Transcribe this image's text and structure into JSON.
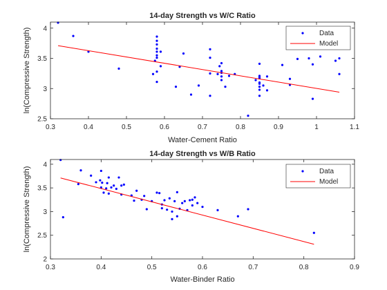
{
  "chart_data": [
    {
      "type": "scatter",
      "title": "14-day Strength vs W/C Ratio",
      "xlabel": "Water-Cement Ratio",
      "ylabel": "ln(Compressive Strength)",
      "xlim": [
        0.3,
        1.1
      ],
      "ylim": [
        2.5,
        4.1
      ],
      "xticks": [
        "0.3",
        "0.4",
        "0.5",
        "0.6",
        "0.7",
        "0.8",
        "0.9",
        "1",
        "1.1"
      ],
      "yticks": [
        "2.5",
        "3",
        "3.5",
        "4"
      ],
      "grid": false,
      "legend_position": "top-right",
      "series": [
        {
          "name": "Data",
          "kind": "points",
          "color": "#0000ff",
          "points": [
            [
              0.32,
              4.09
            ],
            [
              0.36,
              3.87
            ],
            [
              0.4,
              3.61
            ],
            [
              0.48,
              3.33
            ],
            [
              0.57,
              3.24
            ],
            [
              0.575,
              3.46
            ],
            [
              0.58,
              3.86
            ],
            [
              0.58,
              3.79
            ],
            [
              0.58,
              3.73
            ],
            [
              0.58,
              3.66
            ],
            [
              0.58,
              3.61
            ],
            [
              0.58,
              3.55
            ],
            [
              0.58,
              3.51
            ],
            [
              0.58,
              3.28
            ],
            [
              0.58,
              3.11
            ],
            [
              0.59,
              3.61
            ],
            [
              0.59,
              3.37
            ],
            [
              0.63,
              3.03
            ],
            [
              0.64,
              3.36
            ],
            [
              0.65,
              3.58
            ],
            [
              0.67,
              2.9
            ],
            [
              0.69,
              3.05
            ],
            [
              0.72,
              3.65
            ],
            [
              0.72,
              3.51
            ],
            [
              0.72,
              3.25
            ],
            [
              0.72,
              2.88
            ],
            [
              0.74,
              3.24
            ],
            [
              0.745,
              3.37
            ],
            [
              0.75,
              3.42
            ],
            [
              0.75,
              3.29
            ],
            [
              0.75,
              3.26
            ],
            [
              0.75,
              3.2
            ],
            [
              0.75,
              3.14
            ],
            [
              0.76,
              3.03
            ],
            [
              0.77,
              3.21
            ],
            [
              0.785,
              3.24
            ],
            [
              0.82,
              2.55
            ],
            [
              0.84,
              3.14
            ],
            [
              0.85,
              3.41
            ],
            [
              0.85,
              3.21
            ],
            [
              0.85,
              3.19
            ],
            [
              0.85,
              3.17
            ],
            [
              0.85,
              3.1
            ],
            [
              0.85,
              3.08
            ],
            [
              0.85,
              3.03
            ],
            [
              0.85,
              2.98
            ],
            [
              0.85,
              2.88
            ],
            [
              0.86,
              3.05
            ],
            [
              0.87,
              3.2
            ],
            [
              0.87,
              2.97
            ],
            [
              0.91,
              3.39
            ],
            [
              0.93,
              3.06
            ],
            [
              0.93,
              3.16
            ],
            [
              0.95,
              3.49
            ],
            [
              0.98,
              3.5
            ],
            [
              0.99,
              2.83
            ],
            [
              0.99,
              3.4
            ],
            [
              1.01,
              3.53
            ],
            [
              1.05,
              3.46
            ],
            [
              1.06,
              3.5
            ],
            [
              1.06,
              3.24
            ]
          ]
        },
        {
          "name": "Model",
          "kind": "line",
          "color": "#ff0000",
          "points": [
            [
              0.32,
              3.71
            ],
            [
              1.06,
              2.94
            ]
          ]
        }
      ]
    },
    {
      "type": "scatter",
      "title": "14-day Strength vs W/B Ratio",
      "xlabel": "Water-Binder Ratio",
      "ylabel": "ln(Compressive Strength)",
      "xlim": [
        0.3,
        0.9
      ],
      "ylim": [
        2.0,
        4.1
      ],
      "xticks": [
        "0.3",
        "0.4",
        "0.5",
        "0.6",
        "0.7",
        "0.8",
        "0.9"
      ],
      "yticks": [
        "2",
        "2.5",
        "3",
        "3.5",
        "4"
      ],
      "grid": false,
      "legend_position": "top-right",
      "series": [
        {
          "name": "Data",
          "kind": "points",
          "color": "#0000ff",
          "points": [
            [
              0.32,
              4.09
            ],
            [
              0.325,
              2.88
            ],
            [
              0.355,
              3.58
            ],
            [
              0.36,
              3.87
            ],
            [
              0.38,
              3.76
            ],
            [
              0.39,
              3.62
            ],
            [
              0.398,
              3.66
            ],
            [
              0.4,
              3.86
            ],
            [
              0.4,
              3.51
            ],
            [
              0.402,
              3.61
            ],
            [
              0.405,
              3.4
            ],
            [
              0.41,
              3.49
            ],
            [
              0.412,
              3.6
            ],
            [
              0.415,
              3.72
            ],
            [
              0.415,
              3.38
            ],
            [
              0.42,
              3.51
            ],
            [
              0.425,
              3.55
            ],
            [
              0.43,
              3.48
            ],
            [
              0.435,
              3.72
            ],
            [
              0.44,
              3.55
            ],
            [
              0.44,
              3.36
            ],
            [
              0.445,
              3.57
            ],
            [
              0.46,
              3.34
            ],
            [
              0.465,
              3.23
            ],
            [
              0.47,
              3.44
            ],
            [
              0.48,
              3.25
            ],
            [
              0.485,
              3.33
            ],
            [
              0.49,
              3.05
            ],
            [
              0.5,
              3.22
            ],
            [
              0.51,
              3.4
            ],
            [
              0.515,
              3.39
            ],
            [
              0.52,
              3.15
            ],
            [
              0.52,
              3.07
            ],
            [
              0.525,
              3.24
            ],
            [
              0.53,
              3.04
            ],
            [
              0.535,
              3.28
            ],
            [
              0.54,
              3.0
            ],
            [
              0.54,
              2.84
            ],
            [
              0.545,
              3.22
            ],
            [
              0.55,
              3.41
            ],
            [
              0.55,
              2.9
            ],
            [
              0.555,
              3.06
            ],
            [
              0.56,
              3.18
            ],
            [
              0.565,
              3.22
            ],
            [
              0.57,
              3.03
            ],
            [
              0.575,
              3.24
            ],
            [
              0.58,
              3.25
            ],
            [
              0.58,
              3.13
            ],
            [
              0.585,
              3.3
            ],
            [
              0.59,
              3.18
            ],
            [
              0.6,
              3.1
            ],
            [
              0.63,
              3.03
            ],
            [
              0.67,
              2.9
            ],
            [
              0.69,
              3.05
            ],
            [
              0.82,
              2.55
            ]
          ]
        },
        {
          "name": "Model",
          "kind": "line",
          "color": "#ff0000",
          "points": [
            [
              0.32,
              3.71
            ],
            [
              0.82,
              2.31
            ]
          ]
        }
      ]
    }
  ]
}
